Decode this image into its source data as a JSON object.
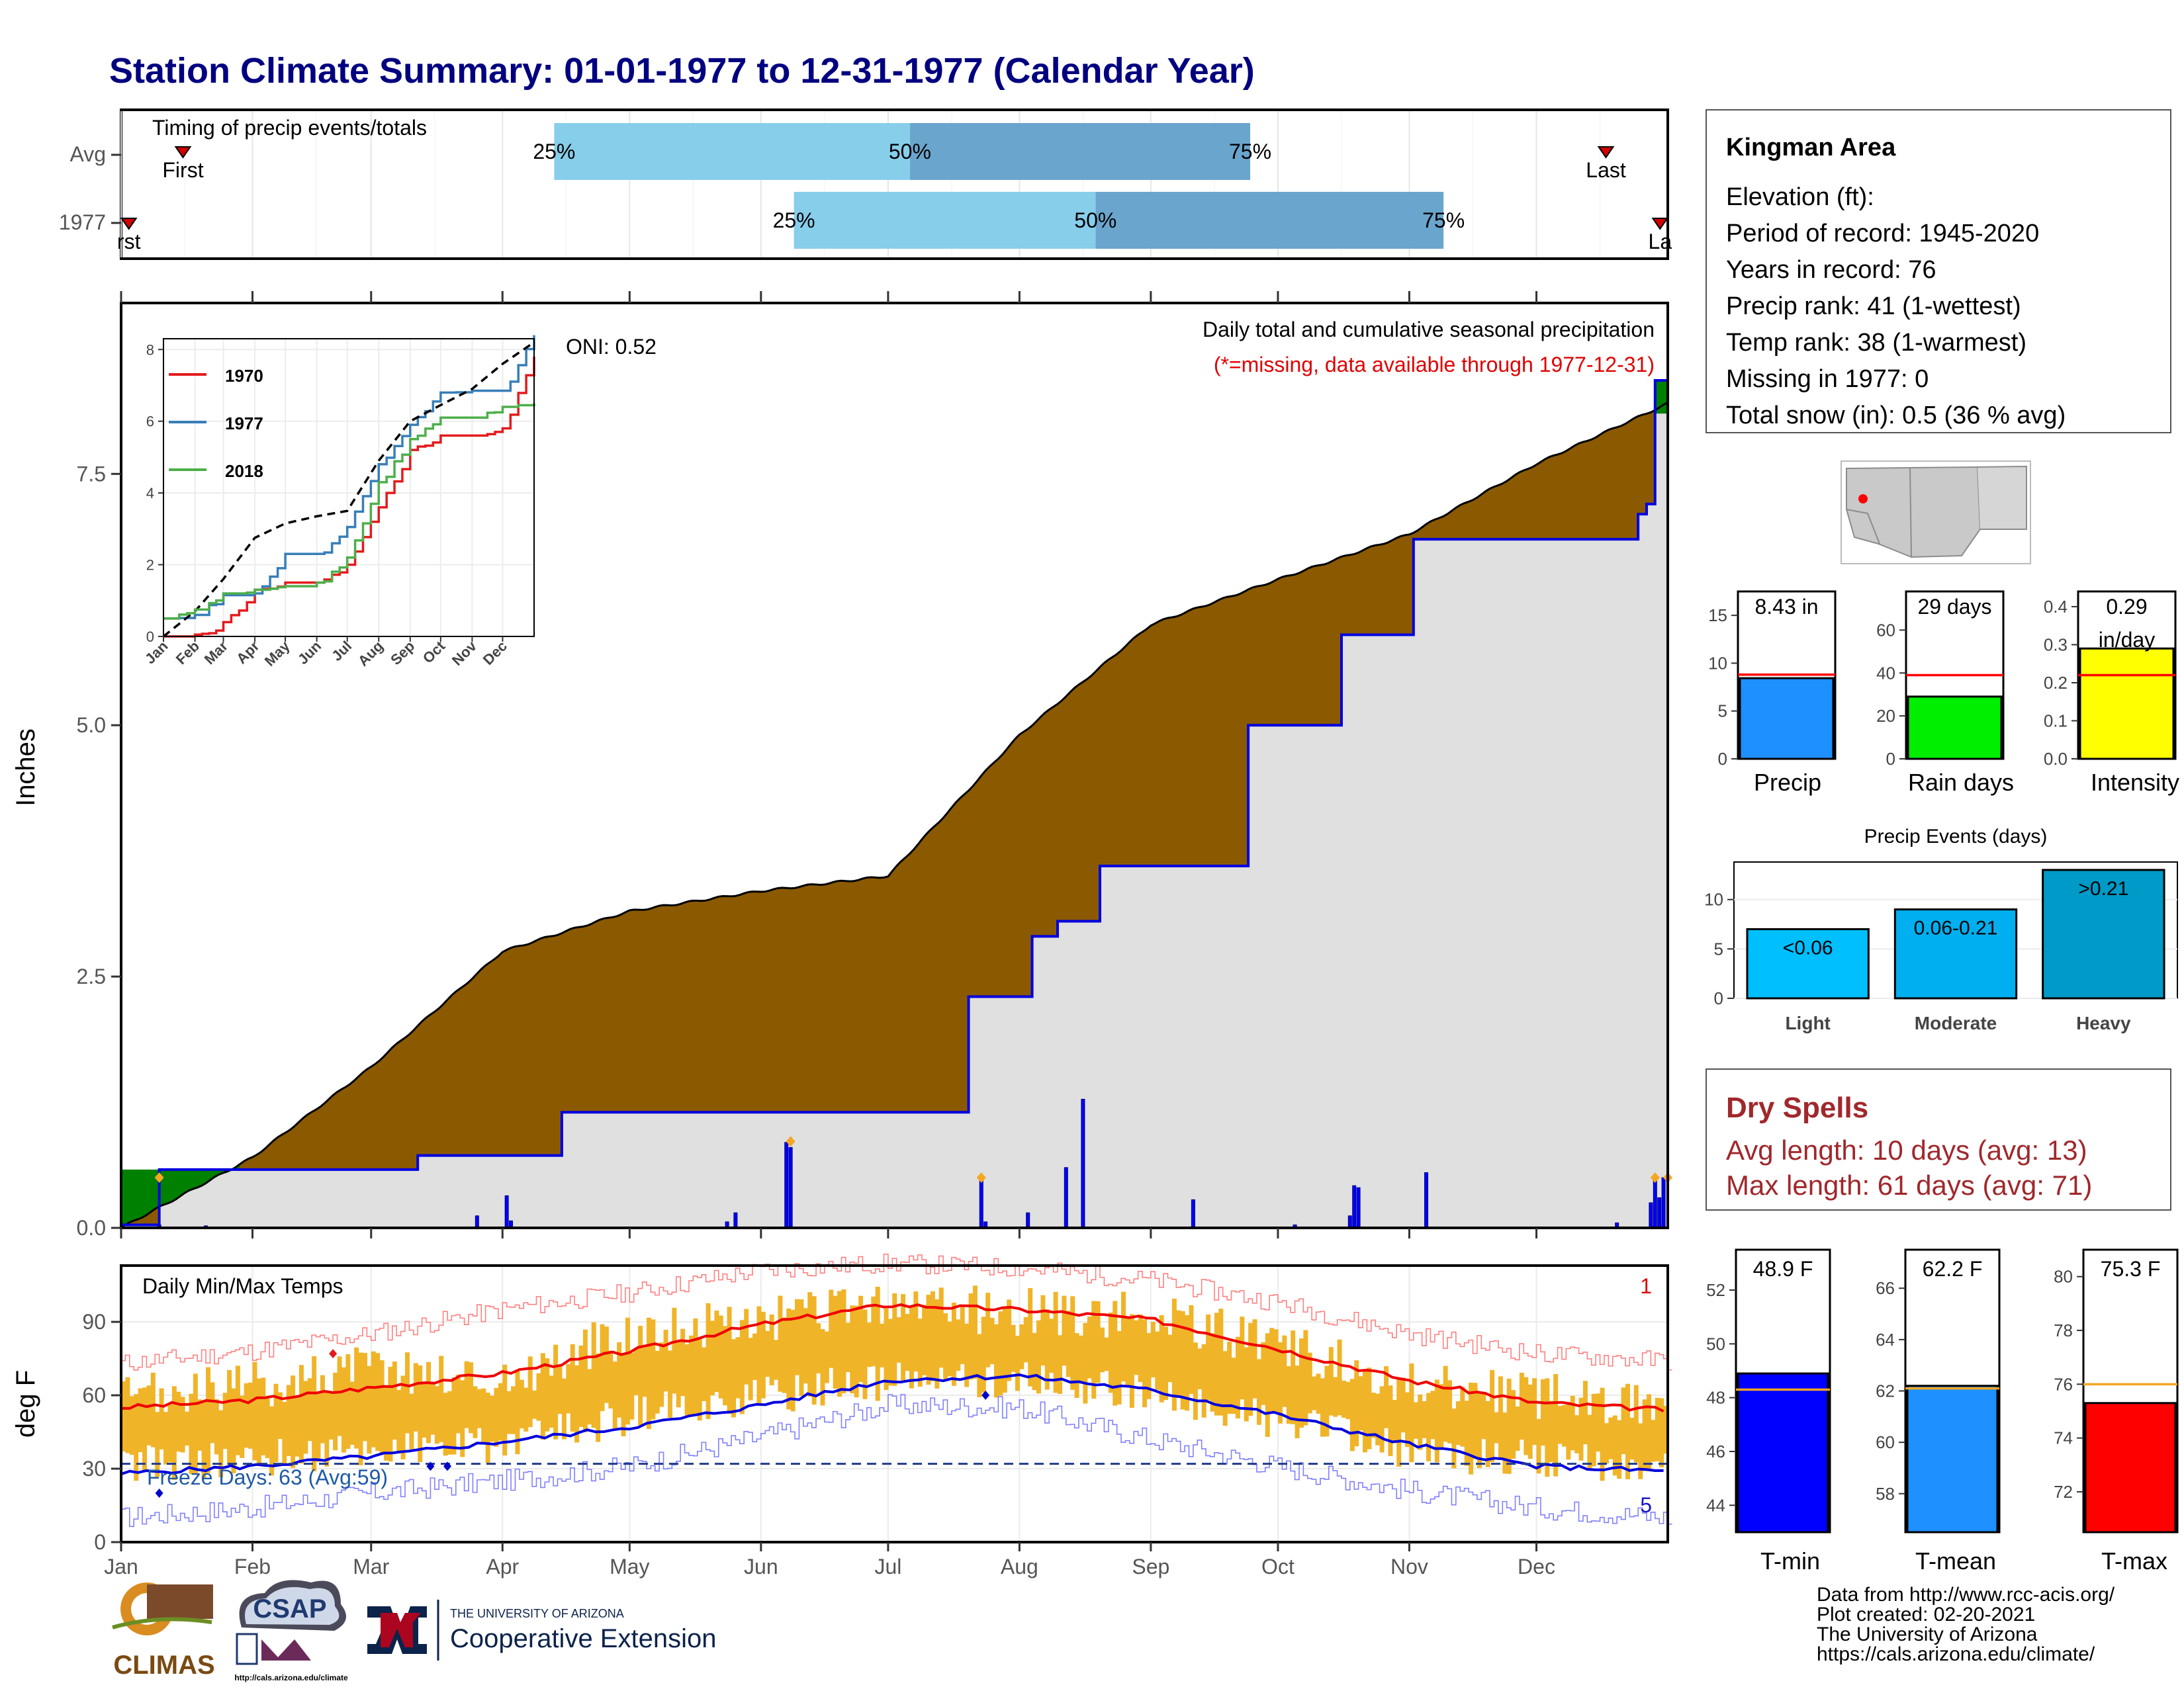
{
  "title": "Station Climate Summary: 01-01-1977 to 12-31-1977 (Calendar Year)",
  "months": [
    "Jan",
    "Feb",
    "Mar",
    "Apr",
    "May",
    "Jun",
    "Jul",
    "Aug",
    "Sep",
    "Oct",
    "Nov",
    "Dec"
  ],
  "timing": {
    "label": "Timing of precip events/totals",
    "rows": [
      {
        "name": "Avg",
        "q25": 0.28,
        "q50": 0.51,
        "q75": 0.73,
        "first": 0.04,
        "last": 0.96,
        "first_label": "First",
        "last_label": "Last"
      },
      {
        "name": "1977",
        "q25": 0.435,
        "q50": 0.63,
        "q75": 0.855,
        "first": 0.005,
        "last": 0.995,
        "first_label": "rst",
        "last_label": "La"
      }
    ],
    "pct_labels": [
      "25%",
      "50%",
      "75%"
    ]
  },
  "info": {
    "station": "Kingman Area",
    "lines": [
      "Elevation (ft):",
      "Period of record: 1945-2020",
      "Years in record: 76",
      "Precip rank: 41 (1-wettest)",
      "Temp rank: 38 (1-warmest)",
      "Missing in 1977: 0",
      "Total snow (in): 0.5 (36 % avg)"
    ]
  },
  "precip_panel": {
    "ylabel": "Inches",
    "oni": "ONI: 0.52",
    "caption": "Daily total and cumulative seasonal precipitation",
    "missing_note": "(*=missing, data available through 1977-12-31)",
    "y_ticks": [
      0.0,
      2.5,
      5.0,
      7.5
    ],
    "y_tick_labels": [
      "0.0",
      "2.5",
      "5.0",
      "7.5"
    ],
    "ylim": [
      0,
      9.2
    ]
  },
  "chart_data": [
    {
      "type": "area",
      "name": "cumulative-precip",
      "series": [
        {
          "name": "Average cumulative",
          "x": [
            0,
            31,
            59,
            90,
            120,
            151,
            181,
            212,
            243,
            273,
            304,
            334,
            365
          ],
          "values": [
            0.0,
            0.7,
            1.6,
            2.75,
            3.15,
            3.35,
            3.5,
            4.9,
            6.0,
            6.45,
            6.9,
            7.6,
            8.2
          ]
        },
        {
          "name": "1977 cumulative",
          "x": [
            0,
            9,
            60,
            70,
            100,
            104,
            175,
            200,
            201,
            215,
            221,
            227,
            231,
            266,
            287,
            288,
            305,
            354,
            358,
            360,
            362,
            365
          ],
          "values": [
            0.03,
            0.58,
            0.58,
            0.72,
            0.72,
            1.15,
            1.15,
            2.3,
            2.3,
            2.9,
            3.05,
            3.05,
            3.6,
            5.0,
            5.0,
            5.9,
            6.85,
            6.85,
            7.1,
            7.2,
            8.43,
            8.43
          ]
        }
      ],
      "daily_bars": [
        {
          "day": 9,
          "value": 0.03
        },
        {
          "day": 20,
          "value": 0.02
        },
        {
          "day": 84,
          "value": 0.12
        },
        {
          "day": 91,
          "value": 0.32
        },
        {
          "day": 92,
          "value": 0.07
        },
        {
          "day": 143,
          "value": 0.06
        },
        {
          "day": 145,
          "value": 0.15
        },
        {
          "day": 157,
          "value": 0.85
        },
        {
          "day": 158,
          "value": 0.8
        },
        {
          "day": 203,
          "value": 0.48
        },
        {
          "day": 204,
          "value": 0.06
        },
        {
          "day": 214,
          "value": 0.15
        },
        {
          "day": 223,
          "value": 0.6
        },
        {
          "day": 227,
          "value": 1.28
        },
        {
          "day": 253,
          "value": 0.28
        },
        {
          "day": 277,
          "value": 0.03
        },
        {
          "day": 290,
          "value": 0.12
        },
        {
          "day": 291,
          "value": 0.42
        },
        {
          "day": 292,
          "value": 0.4
        },
        {
          "day": 308,
          "value": 0.55
        },
        {
          "day": 353,
          "value": 0.05
        },
        {
          "day": 361,
          "value": 0.25
        },
        {
          "day": 362,
          "value": 0.47
        },
        {
          "day": 363,
          "value": 0.3
        },
        {
          "day": 364,
          "value": 0.5
        }
      ],
      "xlim": [
        0,
        365
      ],
      "ylim": [
        0,
        9.2
      ]
    },
    {
      "type": "line",
      "name": "inset-cumulative-comparison",
      "x": [
        0,
        31,
        59,
        90,
        120,
        151,
        181,
        212,
        243,
        273,
        304,
        334,
        365
      ],
      "series": [
        {
          "name": "1970",
          "values": [
            0,
            0.05,
            0.4,
            1.3,
            1.5,
            1.5,
            2.0,
            3.6,
            5.2,
            5.6,
            5.6,
            5.8,
            7.8
          ]
        },
        {
          "name": "1977",
          "values": [
            0.5,
            0.6,
            1.15,
            1.2,
            2.3,
            2.3,
            3.05,
            4.8,
            5.9,
            6.8,
            6.85,
            6.85,
            8.4
          ]
        },
        {
          "name": "Average",
          "values": [
            0,
            0.7,
            1.6,
            2.75,
            3.15,
            3.35,
            3.5,
            4.9,
            6.0,
            6.45,
            6.9,
            7.6,
            8.2
          ]
        },
        {
          "name": "2018",
          "values": [
            0.5,
            0.75,
            1.2,
            1.3,
            1.4,
            1.5,
            2.2,
            4.3,
            5.5,
            6.1,
            6.1,
            6.4,
            6.5
          ]
        }
      ],
      "colors": {
        "1970": "#e41a1c",
        "1977": "#377eb8",
        "2018": "#4daf4a",
        "Average": "#000000"
      },
      "y_ticks": [
        0,
        2,
        4,
        6,
        8
      ],
      "ylim": [
        0,
        8.3
      ]
    },
    {
      "type": "line",
      "name": "daily-temps",
      "x": [
        0,
        31,
        59,
        90,
        120,
        151,
        181,
        212,
        243,
        273,
        304,
        334,
        365
      ],
      "series": [
        {
          "name": "Avg max",
          "values": [
            55,
            58,
            63,
            69,
            78,
            89,
            97,
            95,
            91,
            79,
            66,
            57,
            54
          ]
        },
        {
          "name": "Avg min",
          "values": [
            28,
            31,
            35,
            41,
            47,
            56,
            66,
            68,
            62,
            52,
            40,
            31,
            29
          ]
        },
        {
          "name": "Obs max",
          "values": [
            58,
            64,
            72,
            66,
            86,
            90,
            97,
            94,
            92,
            80,
            65,
            60,
            57
          ]
        },
        {
          "name": "Obs min",
          "values": [
            32,
            34,
            38,
            40,
            52,
            60,
            66,
            67,
            60,
            50,
            37,
            34,
            30
          ]
        },
        {
          "name": "Record high",
          "values": [
            73,
            78,
            85,
            95,
            102,
            111,
            114,
            112,
            107,
            98,
            85,
            77,
            74
          ]
        },
        {
          "name": "Record low",
          "values": [
            10,
            14,
            20,
            25,
            31,
            43,
            56,
            55,
            42,
            31,
            21,
            14,
            10
          ]
        }
      ],
      "freeze_line": 32,
      "ylim": [
        0,
        113
      ],
      "y_ticks": [
        0,
        30,
        60,
        90
      ],
      "markers": [
        {
          "day": 9,
          "value": 20,
          "color": "#0000cc"
        },
        {
          "day": 73,
          "value": 31,
          "color": "#0000cc"
        },
        {
          "day": 77,
          "value": 31,
          "color": "#0000cc"
        },
        {
          "day": 204,
          "value": 60,
          "color": "#0000cc"
        },
        {
          "day": 50,
          "value": 77,
          "color": "#e41a1c"
        }
      ]
    },
    {
      "type": "bar",
      "name": "precip-summary-bars",
      "categories": [
        "Precip",
        "Rain days",
        "Intensity"
      ],
      "values": [
        8.43,
        29,
        0.29
      ],
      "averages": [
        8.8,
        39,
        0.22
      ],
      "ylims": [
        [
          0,
          17.5
        ],
        [
          0,
          78
        ],
        [
          0,
          0.44
        ]
      ],
      "value_labels": [
        "8.43 in",
        "29 days",
        "0.29 in/day"
      ],
      "tick_sets": [
        [
          0,
          5,
          10,
          15
        ],
        [
          0,
          20,
          40,
          60
        ],
        [
          0.0,
          0.1,
          0.2,
          0.3,
          0.4
        ]
      ],
      "tick_labels": [
        [
          "0",
          "5",
          "10",
          "15"
        ],
        [
          "0",
          "20",
          "40",
          "60"
        ],
        [
          "0.0",
          "0.1",
          "0.2",
          "0.3",
          "0.4"
        ]
      ],
      "colors": [
        "#1e90ff",
        "#00ee00",
        "#ffff00"
      ]
    },
    {
      "type": "bar",
      "name": "precip-events",
      "title": "Precip Events (days)",
      "categories": [
        "Light",
        "Moderate",
        "Heavy"
      ],
      "values": [
        7,
        9,
        13
      ],
      "value_labels": [
        "<0.06",
        "0.06-0.21",
        ">0.21"
      ],
      "ylim": [
        0,
        13.8
      ],
      "y_ticks": [
        0,
        5,
        10
      ],
      "colors": [
        "#00bfff",
        "#00afef",
        "#009ac8"
      ]
    },
    {
      "type": "bar",
      "name": "temperature-summary-bars",
      "categories": [
        "T-min",
        "T-mean",
        "T-max"
      ],
      "values": [
        48.9,
        62.2,
        75.3
      ],
      "averages": [
        48.3,
        62.1,
        76.0
      ],
      "value_labels": [
        "48.9 F",
        "62.2 F",
        "75.3 F"
      ],
      "ylims": [
        [
          43,
          53.5
        ],
        [
          56.5,
          67.5
        ],
        [
          70.5,
          81
        ]
      ],
      "tick_sets": [
        [
          44,
          46,
          48,
          50,
          52
        ],
        [
          58,
          60,
          62,
          64,
          66
        ],
        [
          72,
          74,
          76,
          78,
          80
        ]
      ],
      "colors": [
        "#0000ff",
        "#1e90ff",
        "#ff0000"
      ]
    }
  ],
  "inset": {
    "legend": [
      "1970",
      "1977",
      "2018"
    ],
    "months": [
      "Jan",
      "Feb",
      "Mar",
      "Apr",
      "May",
      "Jun",
      "Jul",
      "Aug",
      "Sep",
      "Oct",
      "Nov",
      "Dec"
    ]
  },
  "temp_panel": {
    "title": "Daily Min/Max Temps",
    "ylabel": "deg F",
    "freeze": "Freeze Days: 63 (Avg:59)",
    "record_high_count": "1",
    "record_low_count": "5"
  },
  "dry_spells": {
    "title": "Dry Spells",
    "avg": "Avg length: 10 days (avg: 13)",
    "max": "Max length: 61 days (avg: 71)"
  },
  "footer": {
    "lines": [
      "Data from http://www.rcc-acis.org/",
      "Plot created: 02-20-2021",
      "The University of Arizona",
      "https://cals.arizona.edu/climate/"
    ],
    "climas": "CLIMAS",
    "csap": "CSAP",
    "csap_url": "http://cals.arizona.edu/climate",
    "ua_small": "THE UNIVERSITY OF ARIZONA",
    "ua_big": "Cooperative Extension"
  }
}
